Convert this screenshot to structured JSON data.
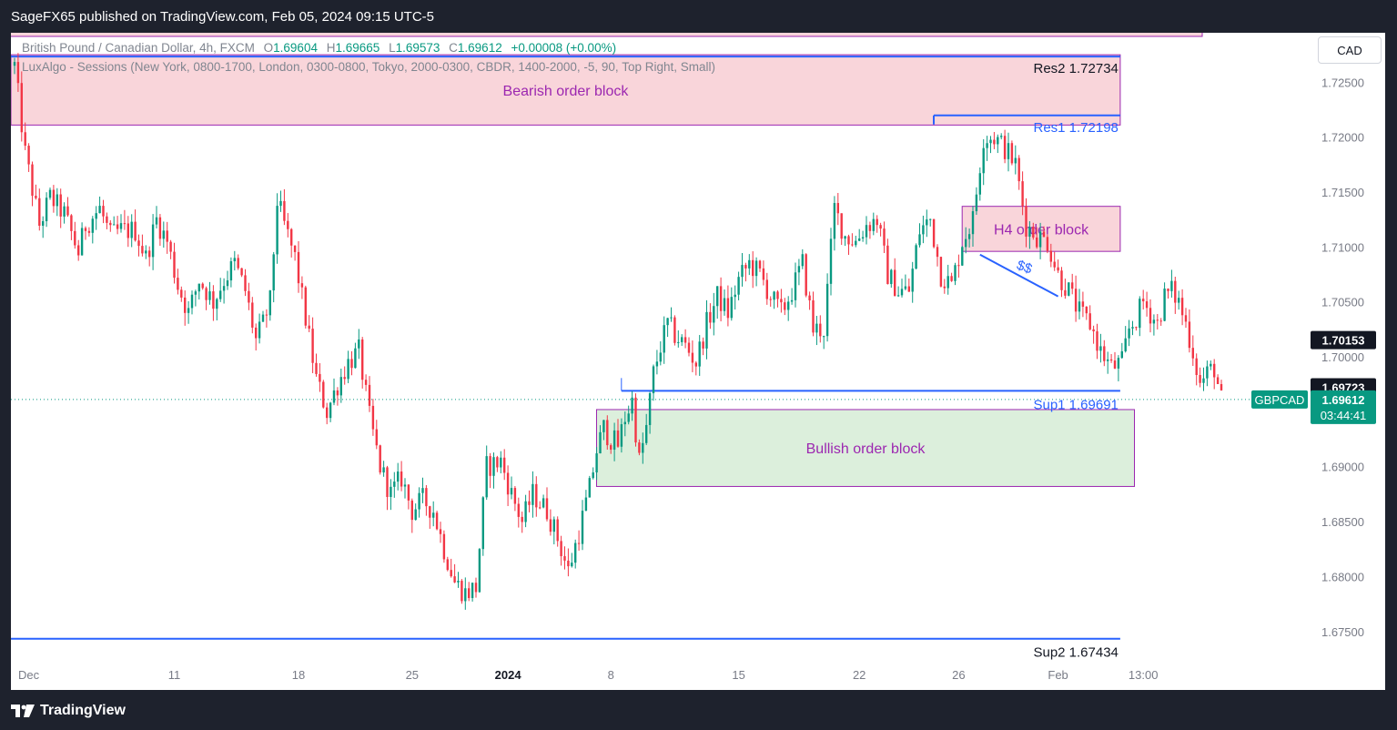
{
  "header": {
    "published_by": "SageFX65 published on TradingView.com, Feb 05, 2024 09:15 UTC-5"
  },
  "legend": {
    "symbol_desc": "British Pound / Canadian Dollar, 4h, FXCM",
    "open_label": "O",
    "open": "1.69604",
    "high_label": "H",
    "high": "1.69665",
    "low_label": "L",
    "low": "1.69573",
    "close_label": "C",
    "close": "1.69612",
    "change": "+0.00008 (+0.00%)",
    "indicator": "LuxAlgo - Sessions (New York, 0800-1700, London, 0300-0800, Tokyo, 2000-0300, CBDR, 1400-2000, -5, 90, Top Right, Small)"
  },
  "currency_button": "CAD",
  "footer": {
    "brand": "TradingView"
  },
  "colors": {
    "up": "#089981",
    "down": "#f23645",
    "line": "#2962ff",
    "bearish_fill": "#f9d5da",
    "bullish_fill": "#dcefdc",
    "zone_border": "#9c27b0"
  },
  "chart_data": {
    "type": "candlestick",
    "symbol": "GBPCAD",
    "ylim": [
      1.6715,
      1.7295
    ],
    "y_ticks": [
      "1.72500",
      "1.72000",
      "1.71500",
      "1.71000",
      "1.70500",
      "1.70000",
      "1.69500",
      "1.69000",
      "1.68500",
      "1.68000",
      "1.67500"
    ],
    "x_ticks": [
      {
        "label": "Dec",
        "i": 4,
        "bold": false
      },
      {
        "label": "11",
        "i": 45,
        "bold": false
      },
      {
        "label": "18",
        "i": 80,
        "bold": false
      },
      {
        "label": "25",
        "i": 112,
        "bold": false
      },
      {
        "label": "2024",
        "i": 139,
        "bold": true
      },
      {
        "label": "8",
        "i": 168,
        "bold": false
      },
      {
        "label": "15",
        "i": 204,
        "bold": false
      },
      {
        "label": "22",
        "i": 238,
        "bold": false
      },
      {
        "label": "26",
        "i": 266,
        "bold": false
      },
      {
        "label": "Feb",
        "i": 294,
        "bold": false
      },
      {
        "label": "13:00",
        "i": 318,
        "bold": false
      }
    ],
    "zones": [
      {
        "label": "Bearish order block",
        "i0": 0,
        "i1": 311,
        "top": 1.7275,
        "bottom": 1.7211,
        "kind": "bearish"
      },
      {
        "label": "H4 order block",
        "i0": 268,
        "i1": 311,
        "top": 1.7137,
        "bottom": 1.7096,
        "kind": "bearish"
      },
      {
        "label": "Bullish order block",
        "i0": 165,
        "i1": 315,
        "top": 1.6952,
        "bottom": 1.6882,
        "kind": "bullish"
      }
    ],
    "levels": [
      {
        "label": "Res2 1.72734",
        "value": 1.72734,
        "i0": 0,
        "i1": 311,
        "text_color": "#131722"
      },
      {
        "label": "Res1 1.72198",
        "value": 1.72198,
        "i0": 260,
        "i1": 311,
        "text_color": "#2962ff"
      },
      {
        "label": "Sup1 1.69691",
        "value": 1.69691,
        "i0": 172,
        "i1": 311,
        "text_color": "#2962ff"
      },
      {
        "label": "Sup2 1.67434",
        "value": 1.67434,
        "i0": 0,
        "i1": 311,
        "text_color": "#131722"
      }
    ],
    "trendline": {
      "i0": 272,
      "v0": 1.7093,
      "i1": 294,
      "v1": 1.7055,
      "label": "$$"
    },
    "price_labels": [
      {
        "value": "1.70153",
        "price": 1.70153,
        "bg": "#131722",
        "color": "#ffffff"
      },
      {
        "value": "1.69723",
        "price": 1.69723,
        "bg": "#131722",
        "color": "#ffffff"
      }
    ],
    "last": {
      "symbol": "GBPCAD",
      "price": "1.69612",
      "price_num": 1.69612,
      "countdown": "03:44:41"
    },
    "anchors": [
      [
        0,
        1.7265
      ],
      [
        3,
        1.7185
      ],
      [
        7,
        1.712
      ],
      [
        10,
        1.7145
      ],
      [
        14,
        1.713
      ],
      [
        18,
        1.7095
      ],
      [
        20,
        1.712
      ],
      [
        24,
        1.7135
      ],
      [
        27,
        1.711
      ],
      [
        30,
        1.7115
      ],
      [
        34,
        1.7115
      ],
      [
        37,
        1.709
      ],
      [
        40,
        1.7125
      ],
      [
        43,
        1.7105
      ],
      [
        46,
        1.7065
      ],
      [
        49,
        1.704
      ],
      [
        52,
        1.707
      ],
      [
        56,
        1.705
      ],
      [
        59,
        1.707
      ],
      [
        62,
        1.7085
      ],
      [
        65,
        1.706
      ],
      [
        68,
        1.7015
      ],
      [
        70,
        1.703
      ],
      [
        72,
        1.705
      ],
      [
        74,
        1.7142
      ],
      [
        76,
        1.712
      ],
      [
        79,
        1.709
      ],
      [
        82,
        1.7035
      ],
      [
        85,
        1.698
      ],
      [
        88,
        1.695
      ],
      [
        91,
        1.6975
      ],
      [
        94,
        1.6995
      ],
      [
        97,
        1.7005
      ],
      [
        100,
        1.6945
      ],
      [
        103,
        1.69
      ],
      [
        106,
        1.6875
      ],
      [
        109,
        1.689
      ],
      [
        112,
        1.686
      ],
      [
        115,
        1.687
      ],
      [
        118,
        1.686
      ],
      [
        121,
        1.6825
      ],
      [
        124,
        1.6795
      ],
      [
        127,
        1.6785
      ],
      [
        130,
        1.679
      ],
      [
        133,
        1.69
      ],
      [
        137,
        1.6905
      ],
      [
        140,
        1.6875
      ],
      [
        143,
        1.685
      ],
      [
        146,
        1.6875
      ],
      [
        150,
        1.686
      ],
      [
        153,
        1.6835
      ],
      [
        156,
        1.6805
      ],
      [
        159,
        1.684
      ],
      [
        162,
        1.688
      ],
      [
        164,
        1.6915
      ],
      [
        166,
        1.6935
      ],
      [
        168,
        1.6925
      ],
      [
        170,
        1.692
      ],
      [
        172,
        1.6945
      ],
      [
        174,
        1.696
      ],
      [
        176,
        1.6905
      ],
      [
        178,
        1.6935
      ],
      [
        180,
        1.6985
      ],
      [
        182,
        1.701
      ],
      [
        184,
        1.703
      ],
      [
        186,
        1.702
      ],
      [
        189,
        1.701
      ],
      [
        192,
        1.6995
      ],
      [
        195,
        1.703
      ],
      [
        198,
        1.7055
      ],
      [
        201,
        1.704
      ],
      [
        204,
        1.707
      ],
      [
        207,
        1.7085
      ],
      [
        210,
        1.7075
      ],
      [
        213,
        1.7055
      ],
      [
        216,
        1.704
      ],
      [
        219,
        1.706
      ],
      [
        222,
        1.7085
      ],
      [
        225,
        1.7025
      ],
      [
        228,
        1.7025
      ],
      [
        231,
        1.7135
      ],
      [
        234,
        1.711
      ],
      [
        237,
        1.7105
      ],
      [
        240,
        1.712
      ],
      [
        243,
        1.7125
      ],
      [
        246,
        1.7075
      ],
      [
        249,
        1.706
      ],
      [
        252,
        1.706
      ],
      [
        255,
        1.7115
      ],
      [
        258,
        1.7125
      ],
      [
        261,
        1.7075
      ],
      [
        264,
        1.7065
      ],
      [
        267,
        1.7105
      ],
      [
        270,
        1.7125
      ],
      [
        273,
        1.72
      ],
      [
        276,
        1.72
      ],
      [
        279,
        1.719
      ],
      [
        282,
        1.7175
      ],
      [
        285,
        1.712
      ],
      [
        288,
        1.711
      ],
      [
        291,
        1.7105
      ],
      [
        294,
        1.7075
      ],
      [
        297,
        1.706
      ],
      [
        300,
        1.704
      ],
      [
        303,
        1.703
      ],
      [
        306,
        1.7005
      ],
      [
        309,
        1.699
      ],
      [
        312,
        1.6995
      ],
      [
        314,
        1.7025
      ],
      [
        316,
        1.7035
      ],
      [
        318,
        1.705
      ],
      [
        320,
        1.704
      ],
      [
        322,
        1.703
      ],
      [
        324,
        1.7055
      ],
      [
        326,
        1.706
      ],
      [
        328,
        1.705
      ],
      [
        330,
        1.703
      ],
      [
        332,
        1.7005
      ],
      [
        334,
        1.6975
      ],
      [
        336,
        1.6985
      ],
      [
        338,
        1.699
      ],
      [
        340,
        1.696
      ]
    ]
  }
}
